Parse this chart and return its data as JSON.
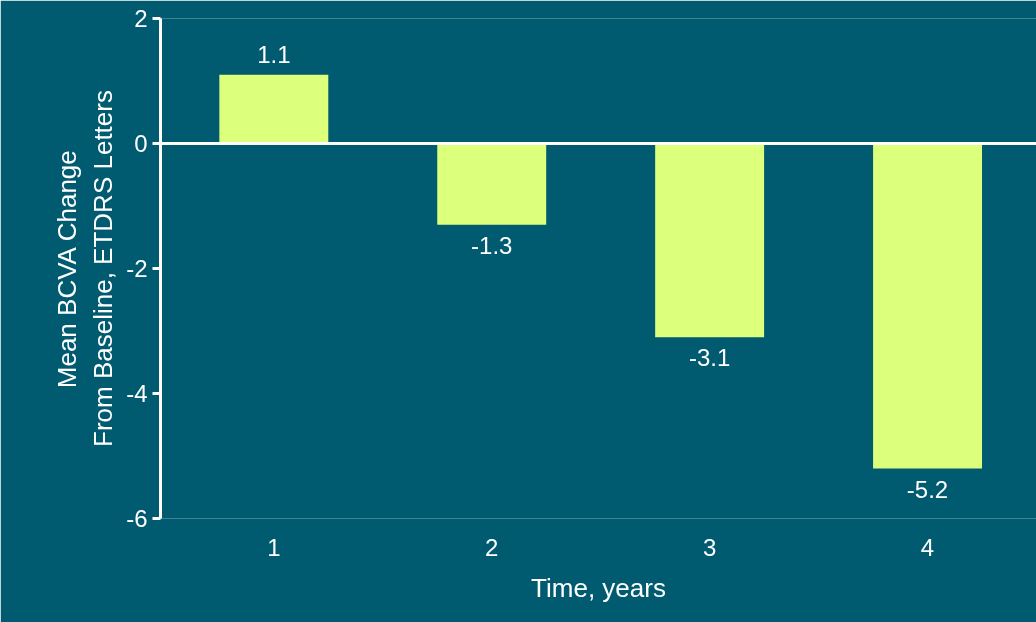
{
  "chart_data": {
    "type": "bar",
    "xlabel": "Time, years",
    "ylabel": "Mean BCVA Change\nFrom Baseline, ETDRS Letters",
    "categories": [
      "1",
      "2",
      "3",
      "4"
    ],
    "values": [
      1.1,
      -1.3,
      -3.1,
      -5.2
    ],
    "color": "#dcff7c",
    "ylim": [
      -6,
      2
    ],
    "yticks": [
      -6,
      -4,
      -2,
      0,
      2
    ],
    "ref_lines": [
      {
        "axis": "y",
        "value": 0,
        "color": "#ffffff"
      }
    ],
    "data_labels": true
  }
}
